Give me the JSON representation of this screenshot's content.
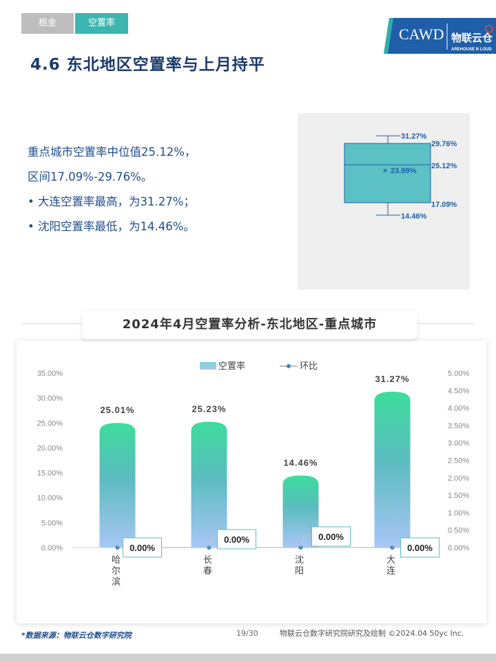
{
  "tabs": [
    {
      "label": "租金"
    },
    {
      "label": "空置率"
    }
  ],
  "logo": {
    "text": "CAWD",
    "brand": "物联云仓",
    "sub": "AREHOUSE  N  LOUD"
  },
  "page_title": "4.6 东北地区空置率与上月持平",
  "summary": {
    "line1": "重点城市空置率中位值25.12%，",
    "line2": "区间17.09%-29.76%。",
    "bullet1": "•  大连空置率最高，为31.27%；",
    "bullet2": "•  沈阳空置率最低，为14.46%。"
  },
  "boxplot": {
    "max": "31.27%",
    "q3": "29.76%",
    "median": "25.12%",
    "mean": "23.99%",
    "mean_marker": "×",
    "q1": "17.09%",
    "min": "14.46%",
    "values": {
      "max": 31.27,
      "q3": 29.76,
      "median": 25.12,
      "mean": 23.99,
      "q1": 17.09,
      "min": 14.46
    }
  },
  "chart_title": "2024年4月空置率分析-东北地区-重点城市",
  "chart_data": {
    "type": "bar",
    "categories": [
      "哈尔滨",
      "长春",
      "沈阳",
      "大连"
    ],
    "series": [
      {
        "name": "空置率",
        "type": "bar",
        "values": [
          25.01,
          25.23,
          14.46,
          31.27
        ],
        "labels": [
          "25.01%",
          "25.23%",
          "14.46%",
          "31.27%"
        ]
      },
      {
        "name": "环比",
        "type": "line",
        "values": [
          0,
          0,
          0,
          0
        ],
        "labels": [
          "0.00%",
          "0.00%",
          "0.00%",
          "0.00%"
        ]
      }
    ],
    "ylim_left": [
      0,
      35
    ],
    "yticks_left": [
      "0.00%",
      "5.00%",
      "10.00%",
      "15.00%",
      "20.00%",
      "25.00%",
      "30.00%",
      "35.00%"
    ],
    "ylim_right": [
      0,
      5
    ],
    "yticks_right": [
      "0.00%",
      "0.50%",
      "1.00%",
      "1.50%",
      "2.00%",
      "2.50%",
      "3.00%",
      "3.50%",
      "4.00%",
      "4.50%",
      "5.00%"
    ],
    "legend_position": "top-center",
    "colors": {
      "bar_top": "#3ddc9c",
      "bar_mid": "#5bbcc0",
      "bar_bottom": "#a9c6f5",
      "line": "#3a86c8"
    }
  },
  "footer": {
    "source": "*数据来源：物联云仓数字研究院",
    "page": "19/30",
    "right": "物联云仓数字研究院研究及绘制   ©2024.04 50yc Inc."
  }
}
